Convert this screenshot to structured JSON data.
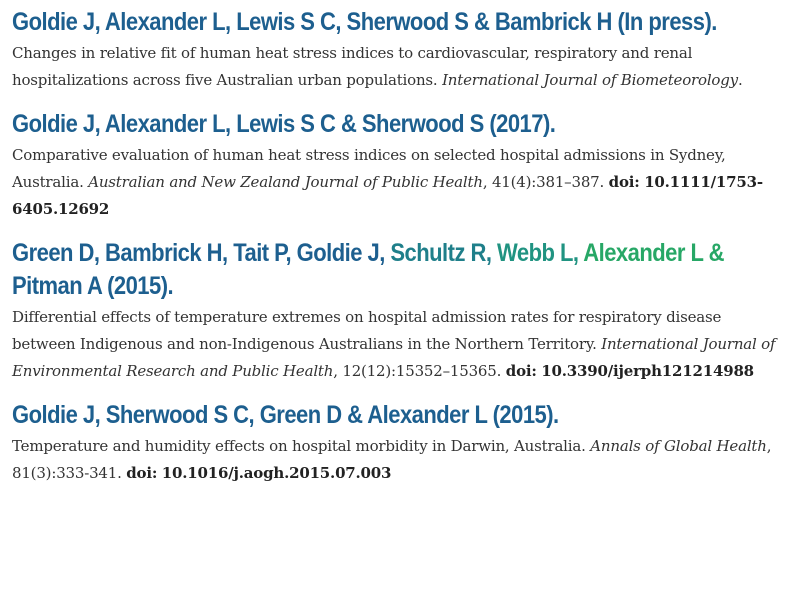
{
  "publications": [
    {
      "title_segments": [
        {
          "text": "Goldie J, Alexander L, Lewis S C, Sherwood S & Bambrick H (In press).",
          "color": "#1d5f8f"
        }
      ],
      "description": "Changes in relative fit of human heat stress indices to cardiovascular, respiratory and renal hospitalizations across five Australian urban populations.",
      "journal": "International Journal of Biometeorology",
      "details": ".",
      "doi_label": "",
      "doi": ""
    },
    {
      "title_segments": [
        {
          "text": "Goldie J, Alexander L, Lewis S C & Sherwood S (2017).",
          "color": "#1d5f8f"
        }
      ],
      "description": "Comparative evaluation of human heat stress indices on selected hospital admissions in Sydney, Australia.",
      "journal": "Australian and New Zealand Journal of Public Health",
      "details": ", 41(4):381–387.",
      "doi_label": "doi:",
      "doi": "10.1111/1753-6405.12692"
    },
    {
      "title_segments": [
        {
          "text": "Green D, Bambrick H, Tait P, Goldie J, ",
          "color": "#1d5f8f"
        },
        {
          "text": "Schultz R, ",
          "color": "#1f7f8a"
        },
        {
          "text": "Webb L, ",
          "color": "#209381"
        },
        {
          "text": "Alexander L & ",
          "color": "#27a766"
        },
        {
          "text": "Pitman A (2015).",
          "color": "#1d5f8f"
        }
      ],
      "description": "Differential effects of temperature extremes on hospital admission rates for respiratory disease between Indigenous and non-Indigenous Australians in the Northern Territory.",
      "journal": "International Journal of Environmental Research and Public Health",
      "details": ", 12(12):15352–15365.",
      "doi_label": "doi:",
      "doi": "10.3390/ijerph121214988"
    },
    {
      "title_segments": [
        {
          "text": "Goldie J, Sherwood S C, Green D & Alexander L (2015).",
          "color": "#1d5f8f"
        }
      ],
      "description": "Temperature and humidity effects on hospital morbidity in Darwin, Australia.",
      "journal": "Annals of Global Health",
      "details": ", 81(3):333-341.",
      "doi_label": "doi:",
      "doi": "10.1016/j.aogh.2015.07.003"
    }
  ]
}
